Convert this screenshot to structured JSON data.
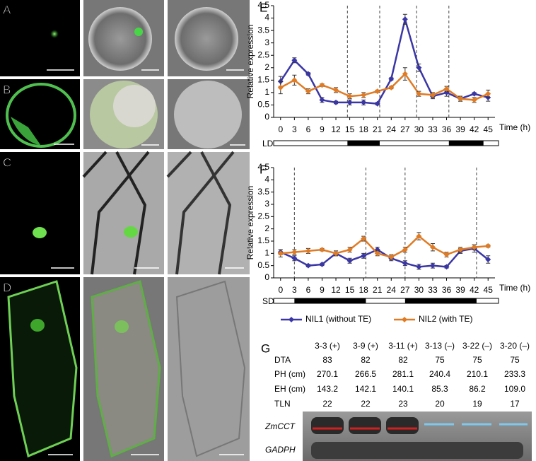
{
  "image_panels": [
    "A",
    "B",
    "C",
    "D"
  ],
  "chart_data": [
    {
      "type": "line",
      "panel": "E",
      "ylabel": "Relative expression",
      "xlabel": "Time (h)",
      "x": [
        0,
        3,
        6,
        9,
        12,
        15,
        18,
        21,
        24,
        27,
        30,
        33,
        36,
        39,
        42,
        45
      ],
      "xlim": [
        -1.5,
        46.5
      ],
      "xticks": [
        0,
        3,
        6,
        9,
        12,
        15,
        18,
        21,
        24,
        27,
        30,
        33,
        36,
        39,
        42,
        45
      ],
      "ylim": [
        0,
        4.5
      ],
      "yticks": [
        0,
        0.5,
        1,
        1.5,
        2,
        2.5,
        3,
        3.5,
        4,
        4.5
      ],
      "photoperiod": "LD",
      "dividers": [
        14.5,
        21.5,
        29.5,
        36.5
      ],
      "dark": [
        [
          14.5,
          21.5
        ],
        [
          36.5,
          44
        ]
      ],
      "series": [
        {
          "color": "#3a36a6",
          "values": [
            1.45,
            2.3,
            1.75,
            0.7,
            0.6,
            0.6,
            0.6,
            0.55,
            1.55,
            3.95,
            2.0,
            0.85,
            1.0,
            0.75,
            0.95,
            0.8
          ],
          "errors": [
            0.2,
            0.1,
            0.05,
            0.1,
            0.05,
            0.1,
            0.1,
            0.05,
            0.05,
            0.2,
            0.15,
            0.1,
            0.15,
            0.1,
            0.05,
            0.15
          ]
        },
        {
          "color": "#e07b24",
          "values": [
            1.2,
            1.5,
            1.05,
            1.3,
            1.1,
            0.85,
            0.9,
            1.05,
            1.2,
            1.75,
            0.95,
            0.9,
            1.15,
            0.75,
            0.7,
            0.95
          ],
          "errors": [
            0.25,
            0.2,
            0.1,
            0.05,
            0.1,
            0.1,
            0.1,
            0.05,
            0.05,
            0.25,
            0.1,
            0.1,
            0.1,
            0.1,
            0.1,
            0.15
          ]
        }
      ]
    },
    {
      "type": "line",
      "panel": "F",
      "ylabel": "Relative expression",
      "xlabel": "Time (h)",
      "x": [
        0,
        3,
        6,
        9,
        12,
        15,
        18,
        21,
        24,
        27,
        30,
        33,
        36,
        39,
        42,
        45
      ],
      "xlim": [
        -1.5,
        46.5
      ],
      "xticks": [
        0,
        3,
        6,
        9,
        12,
        15,
        18,
        21,
        24,
        27,
        30,
        33,
        36,
        39,
        42,
        45
      ],
      "ylim": [
        0,
        4.5
      ],
      "yticks": [
        0,
        0.5,
        1,
        1.5,
        2,
        2.5,
        3,
        3.5,
        4,
        4.5
      ],
      "photoperiod": "SD",
      "dividers": [
        3,
        18.5,
        27,
        42.5
      ],
      "dark": [
        [
          3,
          18.5
        ],
        [
          27,
          42.5
        ]
      ],
      "series": [
        {
          "name": "NIL1 (without TE)",
          "color": "#3a36a6",
          "values": [
            1.05,
            0.8,
            0.5,
            0.55,
            1.0,
            0.7,
            0.9,
            1.15,
            0.8,
            0.6,
            0.45,
            0.5,
            0.45,
            1.1,
            1.2,
            0.75
          ],
          "errors": [
            0.1,
            0.1,
            0.05,
            0.05,
            0.1,
            0.1,
            0.1,
            0.1,
            0.1,
            0.1,
            0.1,
            0.1,
            0.05,
            0.1,
            0.15,
            0.15
          ]
        },
        {
          "name": "NIL2 (with TE)",
          "color": "#e07b24",
          "values": [
            1.0,
            1.05,
            1.1,
            1.15,
            1.0,
            1.15,
            1.6,
            1.0,
            0.85,
            1.15,
            1.7,
            1.25,
            0.95,
            1.15,
            1.25,
            1.3
          ],
          "errors": [
            0.15,
            0.1,
            0.1,
            0.05,
            0.1,
            0.1,
            0.1,
            0.1,
            0.1,
            0.1,
            0.15,
            0.15,
            0.1,
            0.1,
            0.1,
            0.05
          ]
        }
      ]
    }
  ],
  "table": {
    "panel": "G",
    "columns": [
      "3-3 (+)",
      "3-9 (+)",
      "3-11 (+)",
      "3-13 (–)",
      "3-22 (–)",
      "3-20 (–)"
    ],
    "rows": [
      [
        "DTA",
        "83",
        "82",
        "82",
        "75",
        "75",
        "75"
      ],
      [
        "PH (cm)",
        "270.1",
        "266.5",
        "281.1",
        "240.4",
        "210.1",
        "233.3"
      ],
      [
        "EH (cm)",
        "143.2",
        "142.1",
        "140.1",
        "85.3",
        "86.2",
        "109.0"
      ],
      [
        "TLN",
        "22",
        "22",
        "23",
        "20",
        "19",
        "17"
      ]
    ],
    "gel_labels": [
      "ZmCCT",
      "GADPH"
    ]
  }
}
